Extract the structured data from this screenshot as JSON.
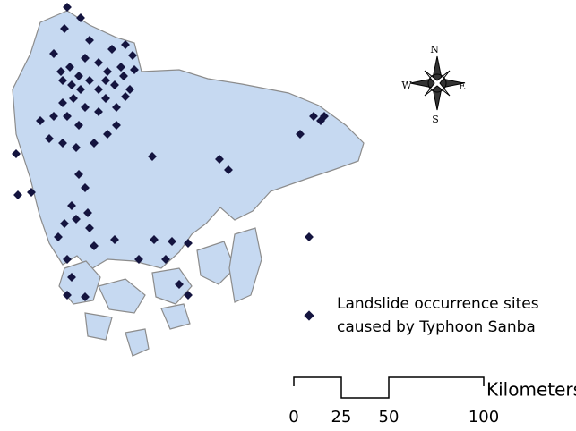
{
  "compass": {
    "north": "N",
    "east": "E",
    "south": "S",
    "west": "W"
  },
  "legend": {
    "lines": [
      "Landslide occurrence sites",
      "caused by Typhoon Sanba"
    ]
  },
  "scale_bar": {
    "ticks": [
      0,
      25,
      50,
      100
    ],
    "unit": "Kilometers"
  }
}
